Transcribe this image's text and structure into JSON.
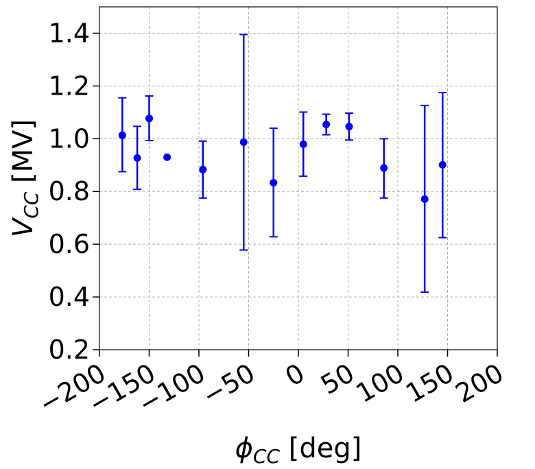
{
  "chart_data": {
    "type": "scatter",
    "title": "",
    "xlabel": {
      "symbol": "ϕ",
      "sub": "CC",
      "unit": "[deg]"
    },
    "ylabel": {
      "symbol": "V",
      "sub": "CC",
      "unit": "[MV]"
    },
    "xlim": [
      -200,
      200
    ],
    "ylim": [
      0.2,
      1.5
    ],
    "xticks": [
      -200,
      -150,
      -100,
      -50,
      0,
      50,
      100,
      150,
      200
    ],
    "xtick_labels": [
      "−200",
      "−150",
      "−100",
      "−50",
      "0",
      "50",
      "100",
      "150",
      "200"
    ],
    "yticks": [
      0.2,
      0.4,
      0.6,
      0.8,
      1.0,
      1.2,
      1.4
    ],
    "ytick_labels": [
      "0.2",
      "0.4",
      "0.6",
      "0.8",
      "1.0",
      "1.2",
      "1.4"
    ],
    "grid": true,
    "color": "#0000ff",
    "points": [
      {
        "x": -177,
        "y": 1.013,
        "err_low": 0.875,
        "err_high": 1.155
      },
      {
        "x": -162,
        "y": 0.927,
        "err_low": 0.808,
        "err_high": 1.047
      },
      {
        "x": -150,
        "y": 1.077,
        "err_low": 0.993,
        "err_high": 1.162
      },
      {
        "x": -132,
        "y": 0.93,
        "err_low": 0.93,
        "err_high": 0.93
      },
      {
        "x": -96,
        "y": 0.883,
        "err_low": 0.775,
        "err_high": 0.991
      },
      {
        "x": -55,
        "y": 0.987,
        "err_low": 0.578,
        "err_high": 1.395
      },
      {
        "x": -25,
        "y": 0.833,
        "err_low": 0.628,
        "err_high": 1.04
      },
      {
        "x": 5,
        "y": 0.979,
        "err_low": 0.858,
        "err_high": 1.101
      },
      {
        "x": 28,
        "y": 1.054,
        "err_low": 1.015,
        "err_high": 1.093
      },
      {
        "x": 51,
        "y": 1.046,
        "err_low": 0.995,
        "err_high": 1.097
      },
      {
        "x": 86,
        "y": 0.889,
        "err_low": 0.775,
        "err_high": 1.0
      },
      {
        "x": 127,
        "y": 0.771,
        "err_low": 0.418,
        "err_high": 1.126
      },
      {
        "x": 145,
        "y": 0.901,
        "err_low": 0.625,
        "err_high": 1.175
      }
    ]
  }
}
